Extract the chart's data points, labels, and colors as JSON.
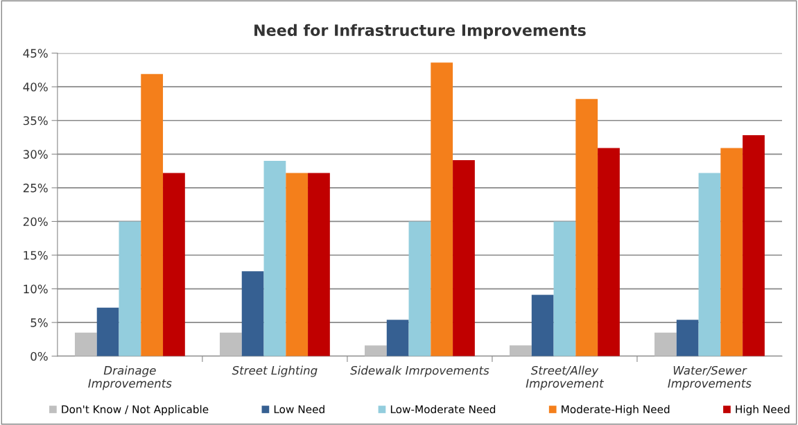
{
  "chart_data": {
    "type": "bar",
    "title": "Need for Infrastructure Improvements",
    "categories": [
      "Drainage\nImprovements",
      "Street Lighting",
      "Sidewalk Imrpovements",
      "Street/Alley\nImprovement",
      "Water/Sewer\nImprovements"
    ],
    "series": [
      {
        "name": "Don't Know / Not Applicable",
        "color": "#bfbfbf",
        "values": [
          3.5,
          3.5,
          1.6,
          1.6,
          3.5
        ]
      },
      {
        "name": "Low Need",
        "color": "#366092",
        "values": [
          7.2,
          12.6,
          5.4,
          9.1,
          5.4
        ]
      },
      {
        "name": "Low-Moderate Need",
        "color": "#93cddd",
        "values": [
          20.0,
          29.0,
          20.0,
          20.0,
          27.2
        ]
      },
      {
        "name": "Moderate-High Need",
        "color": "#f47f1b",
        "values": [
          41.9,
          27.2,
          43.6,
          38.2,
          30.9
        ]
      },
      {
        "name": "High Need",
        "color": "#c00000",
        "values": [
          27.2,
          27.2,
          29.1,
          30.9,
          32.8
        ]
      }
    ],
    "ylim": [
      0,
      45
    ],
    "yticks": [
      {
        "value": 0,
        "label": "0%"
      },
      {
        "value": 5,
        "label": "5%"
      },
      {
        "value": 10,
        "label": "10%"
      },
      {
        "value": 15,
        "label": "15%"
      },
      {
        "value": 20,
        "label": "20%"
      },
      {
        "value": 25,
        "label": "25%"
      },
      {
        "value": 30,
        "label": "30%"
      },
      {
        "value": 35,
        "label": "35%"
      },
      {
        "value": 40,
        "label": "40%"
      },
      {
        "value": 45,
        "label": "45%"
      }
    ],
    "grid": "y",
    "legend": "bottom"
  }
}
